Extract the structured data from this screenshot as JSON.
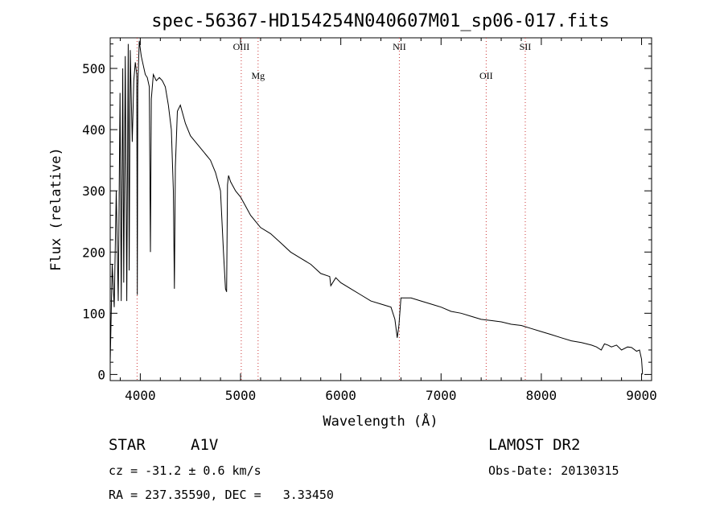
{
  "chart_data": {
    "type": "line",
    "title": "spec-56367-HD154254N040607M01_sp06-017.fits",
    "xlabel": "Wavelength (Å)",
    "ylabel": "Flux (relative)",
    "xlim": [
      3700,
      9100
    ],
    "ylim": [
      -10,
      550
    ],
    "x_ticks": [
      4000,
      5000,
      6000,
      7000,
      8000,
      9000
    ],
    "y_ticks": [
      0,
      100,
      200,
      300,
      400,
      500
    ],
    "grid": false,
    "lines": [
      {
        "label": "OIII",
        "x": 5007
      },
      {
        "label": "Mg",
        "x": 5175
      },
      {
        "label": "NII",
        "x": 6584
      },
      {
        "label": "OII",
        "x": 7450
      },
      {
        "label": "SII",
        "x": 7840
      }
    ],
    "extra_line_x": 3968,
    "series": [
      {
        "x": [
          3700,
          3720,
          3740,
          3760,
          3780,
          3798,
          3810,
          3825,
          3835,
          3850,
          3865,
          3880,
          3889,
          3900,
          3920,
          3935,
          3950,
          3965,
          3970,
          3975,
          3990,
          4010,
          4030,
          4050,
          4070,
          4090,
          4101,
          4110,
          4130,
          4160,
          4190,
          4220,
          4250,
          4280,
          4310,
          4330,
          4340,
          4350,
          4370,
          4400,
          4450,
          4500,
          4550,
          4600,
          4650,
          4700,
          4750,
          4800,
          4830,
          4850,
          4861,
          4870,
          4880,
          4900,
          4950,
          5000,
          5050,
          5100,
          5150,
          5200,
          5300,
          5400,
          5500,
          5600,
          5700,
          5800,
          5890,
          5900,
          5950,
          6000,
          6100,
          6200,
          6300,
          6400,
          6500,
          6540,
          6563,
          6580,
          6600,
          6700,
          6800,
          6900,
          7000,
          7100,
          7200,
          7300,
          7400,
          7500,
          7600,
          7700,
          7800,
          7900,
          8000,
          8100,
          8200,
          8300,
          8400,
          8500,
          8550,
          8598,
          8630,
          8665,
          8700,
          8750,
          8800,
          8860,
          8900,
          8950,
          8980,
          9000,
          9010
        ],
        "values": [
          20,
          180,
          110,
          300,
          120,
          460,
          120,
          500,
          150,
          520,
          120,
          540,
          170,
          530,
          380,
          480,
          510,
          490,
          130,
          470,
          545,
          520,
          505,
          490,
          485,
          470,
          200,
          450,
          490,
          480,
          485,
          480,
          470,
          440,
          400,
          300,
          140,
          340,
          430,
          440,
          410,
          390,
          380,
          370,
          360,
          350,
          330,
          300,
          200,
          140,
          135,
          310,
          325,
          315,
          300,
          290,
          275,
          260,
          250,
          240,
          230,
          215,
          200,
          190,
          180,
          165,
          160,
          145,
          158,
          150,
          140,
          130,
          120,
          115,
          110,
          90,
          60,
          80,
          125,
          125,
          120,
          115,
          110,
          103,
          100,
          95,
          90,
          88,
          86,
          82,
          80,
          75,
          70,
          65,
          60,
          55,
          52,
          48,
          45,
          40,
          50,
          48,
          45,
          48,
          40,
          45,
          44,
          38,
          40,
          25,
          0
        ]
      }
    ]
  },
  "footer": {
    "obj_type": "STAR",
    "subclass": "A1V",
    "survey": "LAMOST DR2",
    "cz_line": "cz = -31.2 ± 0.6 km/s",
    "obs_date": "Obs-Date: 20130315",
    "coords": "RA = 237.35590, DEC =   3.33450"
  }
}
